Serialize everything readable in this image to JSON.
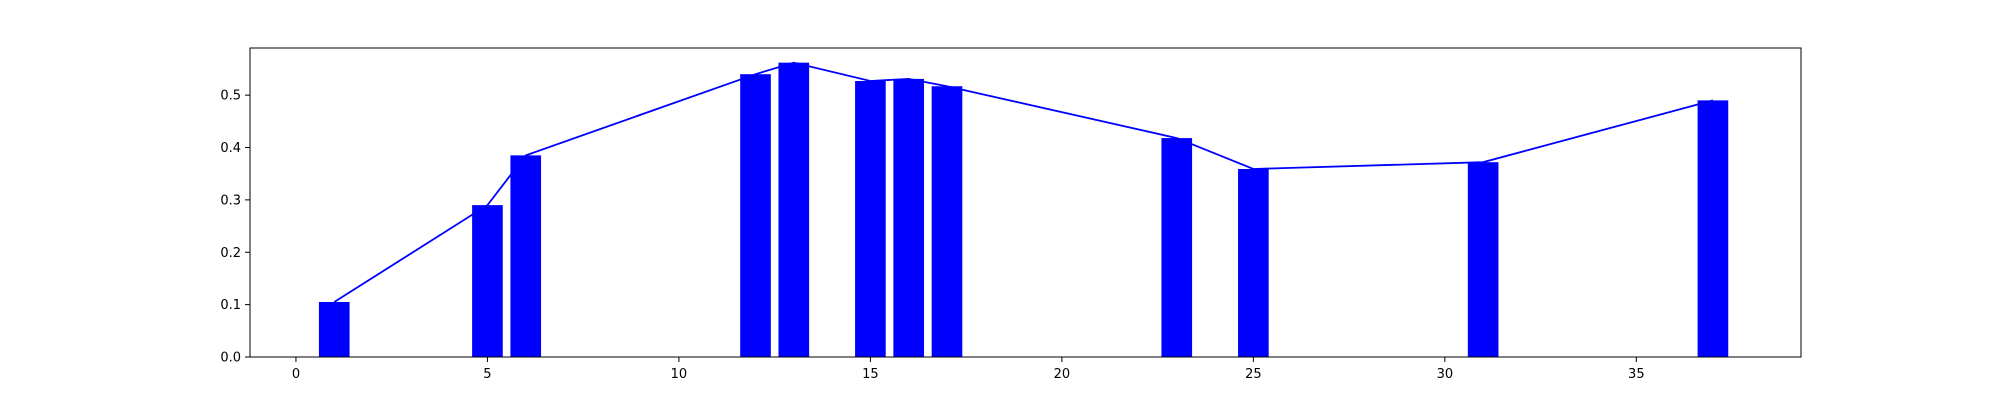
{
  "chart_data": {
    "type": "bar",
    "title": "",
    "xlabel": "",
    "ylabel": "",
    "xlim": [
      -1.2,
      39.3
    ],
    "ylim": [
      0,
      0.59
    ],
    "grid": false,
    "legend": "none",
    "bar_width": 0.8,
    "x_ticks": [
      0,
      5,
      10,
      15,
      20,
      25,
      30,
      35
    ],
    "y_ticks": [
      0.0,
      0.1,
      0.2,
      0.3,
      0.4,
      0.5
    ],
    "series": [
      {
        "type": "bar",
        "color": "#0000ff",
        "x": [
          1,
          5,
          6,
          12,
          13,
          15,
          16,
          17,
          23,
          25,
          31,
          37
        ],
        "values": [
          0.105,
          0.29,
          0.385,
          0.54,
          0.562,
          0.527,
          0.531,
          0.517,
          0.418,
          0.359,
          0.372,
          0.49
        ]
      },
      {
        "type": "line",
        "color": "#0000ff",
        "x": [
          1,
          5,
          6,
          12,
          13,
          15,
          16,
          17,
          23,
          25,
          31,
          37
        ],
        "values": [
          0.105,
          0.29,
          0.385,
          0.54,
          0.562,
          0.527,
          0.531,
          0.517,
          0.418,
          0.359,
          0.372,
          0.49
        ]
      }
    ]
  }
}
